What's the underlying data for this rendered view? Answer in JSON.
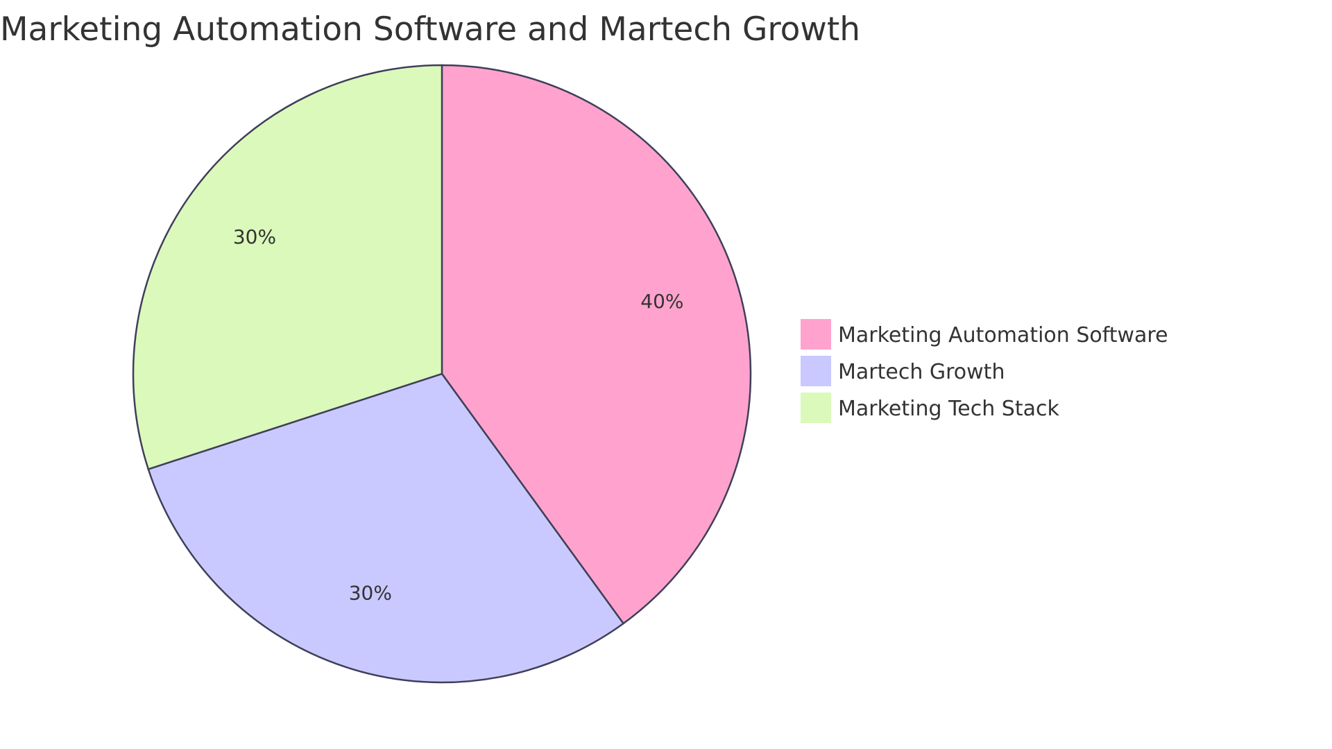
{
  "chart_data": {
    "type": "pie",
    "title": "Marketing Automation Software and Martech Growth",
    "slices": [
      {
        "label": "Marketing Automation Software",
        "value": 40,
        "display": "40%",
        "color": "#FFA3CE"
      },
      {
        "label": "Martech Growth",
        "value": 30,
        "display": "30%",
        "color": "#C9C9FF"
      },
      {
        "label": "Marketing Tech Stack",
        "value": 30,
        "display": "30%",
        "color": "#DBF9BA"
      }
    ],
    "stroke_color": "#3F3F5A",
    "legend_position": "right"
  }
}
